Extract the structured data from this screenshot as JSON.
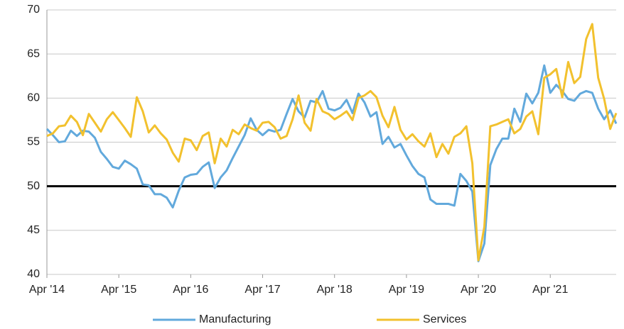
{
  "chart_data": {
    "type": "line",
    "categories": [
      "Apr '14",
      null,
      null,
      null,
      null,
      null,
      null,
      null,
      null,
      null,
      null,
      null,
      "Apr '15",
      null,
      null,
      null,
      null,
      null,
      null,
      null,
      null,
      null,
      null,
      null,
      "Apr '16",
      null,
      null,
      null,
      null,
      null,
      null,
      null,
      null,
      null,
      null,
      null,
      "Apr '17",
      null,
      null,
      null,
      null,
      null,
      null,
      null,
      null,
      null,
      null,
      null,
      "Apr '18",
      null,
      null,
      null,
      null,
      null,
      null,
      null,
      null,
      null,
      null,
      null,
      "Apr '19",
      null,
      null,
      null,
      null,
      null,
      null,
      null,
      null,
      null,
      null,
      null,
      "Apr '20",
      null,
      null,
      null,
      null,
      null,
      null,
      null,
      null,
      null,
      null,
      null,
      "Apr '21",
      null,
      null,
      null,
      null,
      null,
      null,
      null,
      null,
      null,
      null,
      null
    ],
    "series": [
      {
        "name": "Manufacturing",
        "color": "#62a9dc",
        "values": [
          56.5,
          55.8,
          55.0,
          55.1,
          56.3,
          55.7,
          56.3,
          56.2,
          55.5,
          53.9,
          53.1,
          52.2,
          52.0,
          52.9,
          52.5,
          52.0,
          50.2,
          50.1,
          49.1,
          49.1,
          48.7,
          47.6,
          49.5,
          51.0,
          51.3,
          51.4,
          52.2,
          52.7,
          49.8,
          51.0,
          51.8,
          53.2,
          54.5,
          55.8,
          57.7,
          56.4,
          55.8,
          56.4,
          56.2,
          56.4,
          58.2,
          59.9,
          58.5,
          57.8,
          59.7,
          59.5,
          60.8,
          58.8,
          58.6,
          58.9,
          59.8,
          58.3,
          60.5,
          59.5,
          57.9,
          58.4,
          54.8,
          55.6,
          54.4,
          54.8,
          53.5,
          52.3,
          51.4,
          51.0,
          48.5,
          48.0,
          48.0,
          48.0,
          47.8,
          51.4,
          50.6,
          49.4,
          41.5,
          43.5,
          52.4,
          54.2,
          55.4,
          55.4,
          58.8,
          57.3,
          60.5,
          59.4,
          60.6,
          63.7,
          60.6,
          61.5,
          60.8,
          59.9,
          59.7,
          60.5,
          60.8,
          60.6,
          58.8,
          57.6,
          58.6,
          57.1
        ]
      },
      {
        "name": "Services",
        "color": "#f2c12e",
        "values": [
          55.7,
          56.0,
          56.8,
          56.9,
          58.0,
          57.3,
          55.8,
          58.2,
          57.2,
          56.2,
          57.6,
          58.4,
          57.5,
          56.6,
          55.6,
          60.1,
          58.5,
          56.1,
          56.9,
          56.0,
          55.3,
          53.8,
          52.8,
          55.4,
          55.2,
          54.1,
          55.7,
          56.1,
          52.6,
          55.4,
          54.5,
          56.4,
          55.9,
          57.0,
          56.6,
          56.3,
          57.2,
          57.3,
          56.7,
          55.4,
          55.7,
          57.6,
          60.3,
          57.2,
          56.3,
          59.9,
          58.5,
          58.2,
          57.6,
          58.0,
          58.5,
          57.5,
          60.0,
          60.3,
          60.8,
          60.1,
          58.0,
          56.7,
          59.0,
          56.4,
          55.3,
          55.9,
          55.1,
          54.5,
          56.0,
          53.3,
          54.8,
          53.7,
          55.6,
          56.0,
          56.8,
          52.6,
          41.6,
          45.4,
          56.8,
          57.0,
          57.3,
          57.6,
          56.0,
          56.5,
          57.9,
          58.5,
          55.9,
          62.3,
          62.7,
          63.3,
          60.1,
          64.1,
          61.7,
          62.4,
          66.7,
          68.4,
          62.3,
          59.9,
          56.5,
          58.3
        ]
      }
    ],
    "ylim": [
      40,
      70
    ],
    "yticks": [
      40,
      45,
      50,
      55,
      60,
      65,
      70
    ],
    "reference_line": 50,
    "grid": true
  }
}
